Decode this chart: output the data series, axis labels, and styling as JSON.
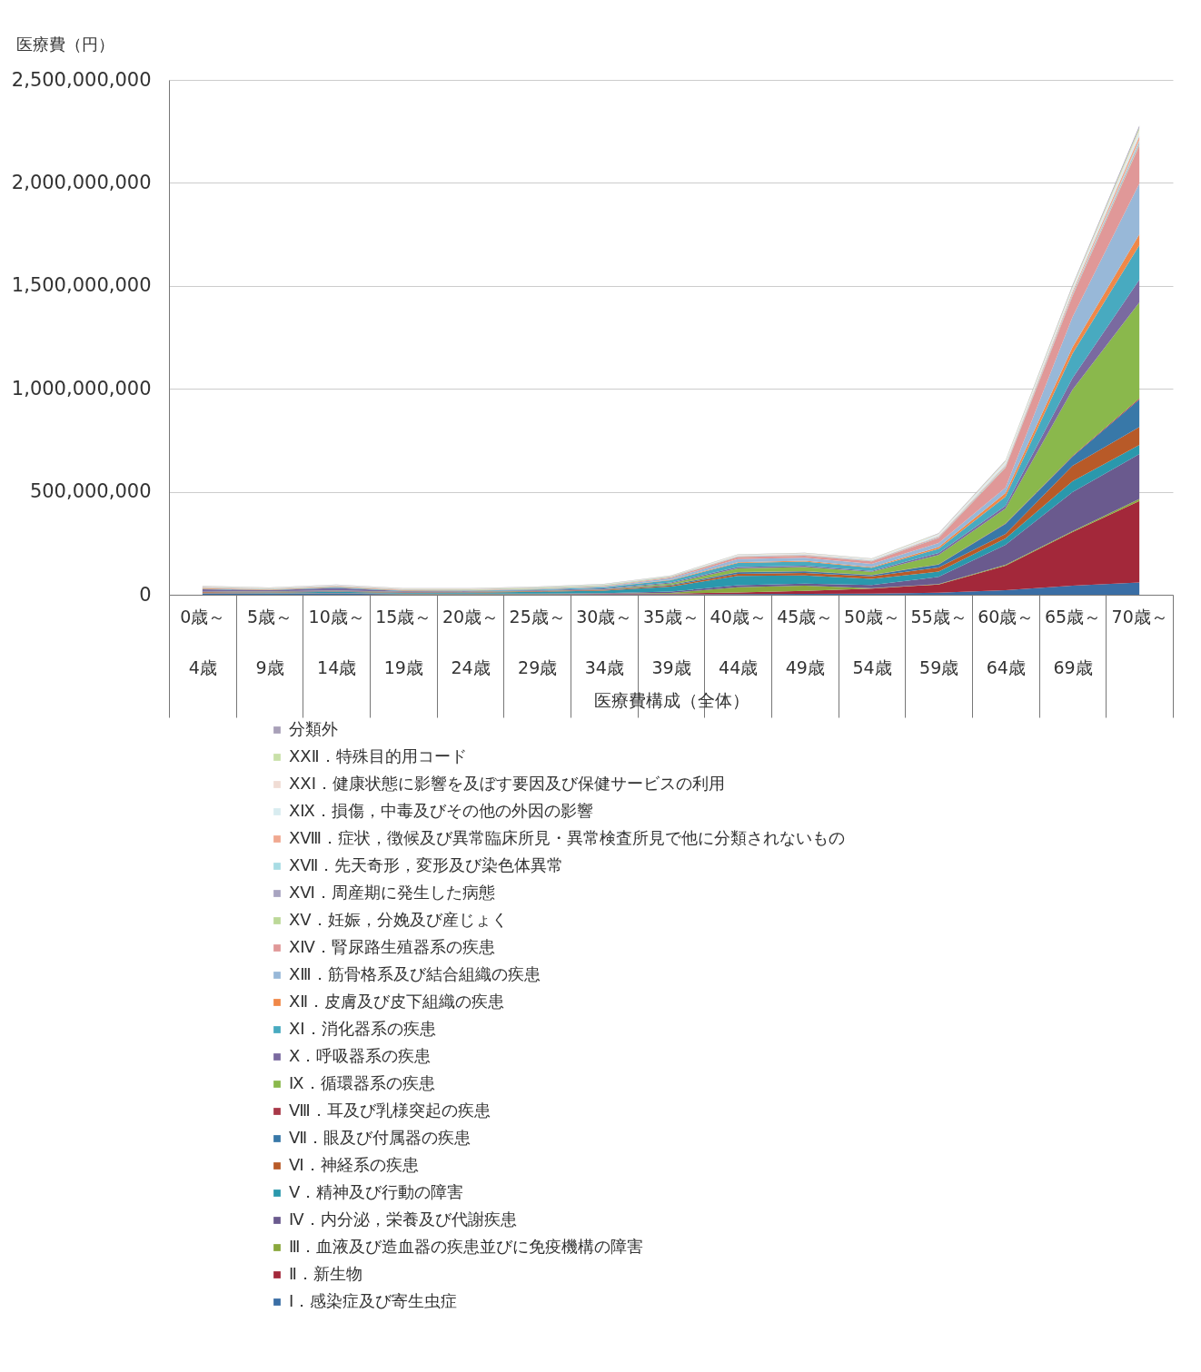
{
  "chart_data": {
    "type": "area",
    "stacked": true,
    "xlabel": "医療費構成（全体）",
    "ylabel": "医療費（円）",
    "categories": [
      "0歳～\n4歳",
      "5歳～\n9歳",
      "10歳～\n14歳",
      "15歳～\n19歳",
      "20歳～\n24歳",
      "25歳～\n29歳",
      "30歳～\n34歳",
      "35歳～\n39歳",
      "40歳～\n44歳",
      "45歳～\n49歳",
      "50歳～\n54歳",
      "55歳～\n59歳",
      "60歳～\n64歳",
      "65歳～\n69歳",
      "70歳～"
    ],
    "ylim": [
      0,
      2500000000
    ],
    "yticks": [
      0,
      {
        "value": 500000000,
        "label": "500,000,000"
      },
      {
        "value": 1000000000,
        "label": "1,000,000,000"
      },
      {
        "value": 1500000000,
        "label": "1,500,000,000"
      },
      {
        "value": 2000000000,
        "label": "2,000,000,000"
      },
      {
        "value": 2500000000,
        "label": "2,500,000,000"
      }
    ],
    "grid": "y",
    "legend": "bottom",
    "series": [
      {
        "name": "Ⅰ．感染症及び寄生虫症",
        "color": "#3a6ea5",
        "values": [
          6000000,
          5000000,
          5000000,
          2000000,
          2000000,
          2000000,
          2000000,
          2000000,
          3000000,
          4000000,
          5000000,
          10000000,
          22000000,
          44000000,
          60000000
        ]
      },
      {
        "name": "Ⅱ．新生物",
        "color": "#a3283a",
        "values": [
          1000000,
          1000000,
          1000000,
          1000000,
          1000000,
          1000000,
          2000000,
          4000000,
          8000000,
          15000000,
          25000000,
          40000000,
          119000000,
          260000000,
          395000000
        ]
      },
      {
        "name": "Ⅲ．血液及び造血器の疾患並びに免疫機構の障害",
        "color": "#8aa83c",
        "values": [
          1000000,
          1000000,
          1000000,
          1000000,
          1000000,
          1000000,
          1000000,
          3000000,
          25000000,
          25000000,
          2000000,
          2000000,
          4000000,
          5000000,
          10000000
        ]
      },
      {
        "name": "Ⅳ．内分泌，栄養及び代謝疾患",
        "color": "#6a5a8e",
        "values": [
          1000000,
          1000000,
          2000000,
          1000000,
          1000000,
          2000000,
          3000000,
          6000000,
          10000000,
          10000000,
          15000000,
          35000000,
          98000000,
          189000000,
          218000000
        ]
      },
      {
        "name": "Ⅴ．精神及び行動の障害",
        "color": "#2a98ac",
        "values": [
          1000000,
          2000000,
          5000000,
          4000000,
          5000000,
          8000000,
          12000000,
          25000000,
          45000000,
          40000000,
          30000000,
          25000000,
          30000000,
          53000000,
          44000000
        ]
      },
      {
        "name": "Ⅵ．神経系の疾患",
        "color": "#b85a28",
        "values": [
          3000000,
          2000000,
          3000000,
          2000000,
          2000000,
          2000000,
          3000000,
          5000000,
          10000000,
          12000000,
          12000000,
          20000000,
          22000000,
          75000000,
          88000000
        ]
      },
      {
        "name": "Ⅶ．眼及び付属器の疾患",
        "color": "#3878a8",
        "values": [
          2000000,
          2000000,
          2000000,
          1000000,
          1000000,
          1000000,
          1000000,
          3000000,
          8000000,
          8000000,
          6000000,
          15000000,
          49000000,
          44000000,
          133000000
        ]
      },
      {
        "name": "Ⅷ．耳及び乳様突起の疾患",
        "color": "#a83848",
        "values": [
          1000000,
          1000000,
          1000000,
          1000000,
          1000000,
          1000000,
          1000000,
          1000000,
          1000000,
          1000000,
          1000000,
          1000000,
          2000000,
          3000000,
          5000000
        ]
      },
      {
        "name": "Ⅸ．循環器系の疾患",
        "color": "#8ab84c",
        "values": [
          1000000,
          1000000,
          1000000,
          1000000,
          1000000,
          1000000,
          2000000,
          6000000,
          18000000,
          20000000,
          15000000,
          45000000,
          73000000,
          322000000,
          467000000
        ]
      },
      {
        "name": "Ⅹ．呼吸器系の疾患",
        "color": "#7a6aa0",
        "values": [
          10000000,
          6000000,
          12000000,
          4000000,
          3000000,
          3000000,
          4000000,
          5000000,
          6000000,
          6000000,
          5000000,
          10000000,
          13000000,
          57000000,
          110000000
        ]
      },
      {
        "name": "ⅩⅠ．消化器系の疾患",
        "color": "#48aac0",
        "values": [
          2000000,
          1000000,
          3000000,
          2000000,
          2000000,
          3000000,
          5000000,
          10000000,
          20000000,
          20000000,
          15000000,
          20000000,
          44000000,
          119000000,
          167000000
        ]
      },
      {
        "name": "ⅩⅡ．皮膚及び皮下組織の疾患",
        "color": "#f08848",
        "values": [
          3000000,
          2000000,
          3000000,
          2000000,
          1000000,
          2000000,
          2000000,
          3000000,
          4000000,
          4000000,
          4000000,
          8000000,
          18000000,
          31000000,
          53000000
        ]
      },
      {
        "name": "ⅩⅢ．筋骨格系及び結合組織の疾患",
        "color": "#98b8d8",
        "values": [
          1000000,
          1000000,
          1000000,
          1000000,
          1000000,
          2000000,
          3000000,
          7000000,
          15000000,
          15000000,
          15000000,
          20000000,
          26000000,
          146000000,
          247000000
        ]
      },
      {
        "name": "ⅩⅣ．腎尿路生殖器系の疾患",
        "color": "#e09898",
        "values": [
          1000000,
          1000000,
          1000000,
          1000000,
          1000000,
          1000000,
          2000000,
          5000000,
          10000000,
          10000000,
          12000000,
          25000000,
          97000000,
          101000000,
          186000000
        ]
      },
      {
        "name": "ⅩⅤ．妊娠，分娩及び産じょく",
        "color": "#bcd898",
        "values": [
          1000000,
          1000000,
          1000000,
          1000000,
          2000000,
          3000000,
          3000000,
          2000000,
          1000000,
          1000000,
          1000000,
          1000000,
          2000000,
          3000000,
          5000000
        ]
      },
      {
        "name": "ⅩⅥ．周産期に発生した病態",
        "color": "#a8a4c0",
        "values": [
          2000000,
          1000000,
          1000000,
          1000000,
          1000000,
          1000000,
          1000000,
          1000000,
          2000000,
          2000000,
          2000000,
          3000000,
          4000000,
          6000000,
          10000000
        ]
      },
      {
        "name": "ⅩⅦ．先天奇形，変形及び染色体異常",
        "color": "#a8dce4",
        "values": [
          1000000,
          1000000,
          1000000,
          1000000,
          1000000,
          1000000,
          1000000,
          1000000,
          1000000,
          1000000,
          1000000,
          1000000,
          3000000,
          4000000,
          10000000
        ]
      },
      {
        "name": "ⅩⅧ．症状，徴候及び異常臨床所見・異常検査所見で他に分類されないもの",
        "color": "#f0a890",
        "values": [
          1000000,
          1000000,
          1000000,
          1000000,
          1000000,
          1000000,
          1000000,
          1000000,
          2000000,
          2000000,
          2000000,
          3000000,
          5000000,
          10000000,
          20000000
        ]
      },
      {
        "name": "ⅩⅨ．損傷，中毒及びその他の外因の影響",
        "color": "#d8ecf0",
        "values": [
          1000000,
          1000000,
          2000000,
          1000000,
          1000000,
          1000000,
          1000000,
          1000000,
          3000000,
          4000000,
          4000000,
          8000000,
          12000000,
          15000000,
          20000000
        ]
      },
      {
        "name": "ⅩⅩⅠ．健康状態に影響を及ぼす要因及び保健サービスの利用",
        "color": "#f0dcd4",
        "values": [
          1000000,
          1000000,
          1000000,
          1000000,
          1000000,
          1000000,
          1000000,
          1000000,
          2000000,
          2000000,
          2000000,
          3000000,
          4000000,
          6000000,
          10000000
        ]
      },
      {
        "name": "ⅩⅩⅡ．特殊目的用コード",
        "color": "#c8e0a8",
        "values": [
          1000000,
          1000000,
          1000000,
          1000000,
          1000000,
          1000000,
          1000000,
          1000000,
          1000000,
          1000000,
          1000000,
          2000000,
          3000000,
          5000000,
          10000000
        ]
      },
      {
        "name": "分類外",
        "color": "#a8a0b8",
        "values": [
          1000000,
          1000000,
          1000000,
          1000000,
          1000000,
          1000000,
          1000000,
          1000000,
          1000000,
          1000000,
          1000000,
          2000000,
          3000000,
          5000000,
          10000000
        ]
      }
    ]
  }
}
